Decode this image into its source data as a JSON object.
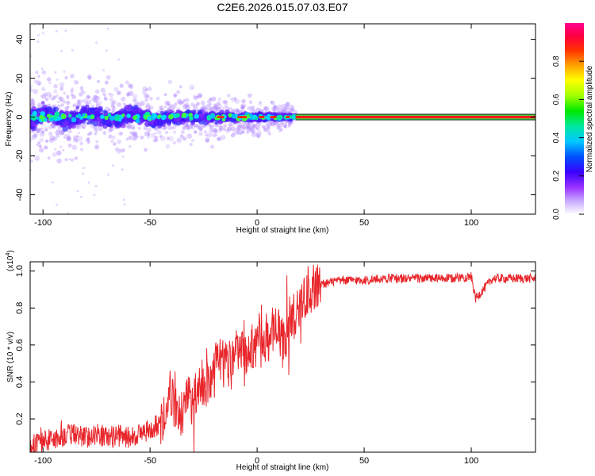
{
  "title": "C2E6.2026.015.07.03.E07",
  "chart_data": [
    {
      "type": "heatmap",
      "xlabel": "Height of straight line (km)",
      "ylabel": "Frequency (Hz)",
      "xlim": [
        -106,
        130
      ],
      "ylim": [
        -50,
        48
      ],
      "xticks": [
        -100,
        -50,
        0,
        50,
        100
      ],
      "yticks": [
        -40,
        -20,
        0,
        20,
        40
      ],
      "description_points": {
        "noise_region_x": [
          -106,
          18
        ],
        "line_region_x": [
          18,
          130
        ],
        "line_frequency": 0
      },
      "colorbar": {
        "label": "Normalized spectral amplitude",
        "range": [
          0.0,
          1.0
        ],
        "ticks": [
          0.0,
          0.2,
          0.4,
          0.6,
          0.8
        ]
      }
    },
    {
      "type": "line",
      "xlabel": "Height of straight line (km)",
      "ylabel": "SNR (10 * v/v)",
      "scale_label": "(x10",
      "scale_exp": "4",
      "scale_close": ")",
      "xlim": [
        -106,
        130
      ],
      "ylim": [
        0.02,
        1.05
      ],
      "xticks": [
        -100,
        -50,
        0,
        50,
        100
      ],
      "yticks": [
        0.2,
        0.4,
        0.6,
        0.8,
        1.0
      ],
      "series": [
        {
          "name": "SNR",
          "color": "#e8262b",
          "x": [
            -106,
            -100,
            -95,
            -90,
            -85,
            -80,
            -75,
            -70,
            -65,
            -60,
            -55,
            -50,
            -45,
            -42,
            -40,
            -38,
            -35,
            -32,
            -30,
            -28,
            -25,
            -22,
            -20,
            -18,
            -15,
            -12,
            -10,
            -8,
            -5,
            -2,
            0,
            2,
            5,
            8,
            10,
            12,
            15,
            18,
            20,
            25,
            30,
            35,
            40,
            50,
            60,
            70,
            80,
            90,
            100,
            102,
            110,
            120,
            130
          ],
          "values": [
            0.05,
            0.08,
            0.09,
            0.11,
            0.12,
            0.1,
            0.12,
            0.1,
            0.11,
            0.1,
            0.12,
            0.14,
            0.18,
            0.3,
            0.35,
            0.25,
            0.22,
            0.3,
            0.25,
            0.35,
            0.4,
            0.38,
            0.45,
            0.5,
            0.5,
            0.48,
            0.55,
            0.6,
            0.58,
            0.6,
            0.62,
            0.68,
            0.62,
            0.7,
            0.66,
            0.6,
            0.72,
            0.78,
            0.85,
            0.9,
            0.93,
            0.94,
            0.95,
            0.95,
            0.96,
            0.96,
            0.96,
            0.96,
            0.97,
            0.85,
            0.96,
            0.96,
            0.96
          ]
        }
      ]
    }
  ]
}
